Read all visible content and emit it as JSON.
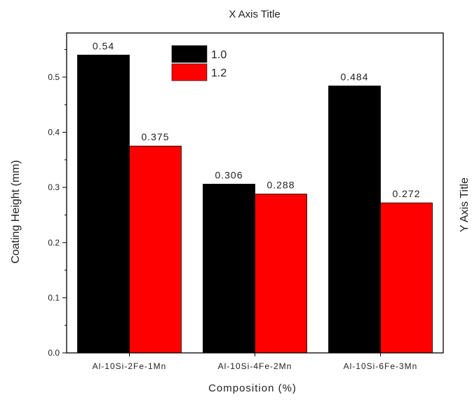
{
  "chart_data": {
    "type": "bar",
    "title": "X Axis Title",
    "xlabel": "Composition (%)",
    "ylabel": "Coating Height (mm)",
    "ylabel_right": "Y Axis Title",
    "categories": [
      "Al-10Si-2Fe-1Mn",
      "Al-10Si-4Fe-2Mn",
      "Al-10Si-6Fe-3Mn"
    ],
    "series": [
      {
        "name": "1.0",
        "color": "#000000",
        "values": [
          0.54,
          0.306,
          0.484
        ],
        "labels": [
          "0.54",
          "0.306",
          "0.484"
        ]
      },
      {
        "name": "1.2",
        "color": "#ff0000",
        "values": [
          0.375,
          0.288,
          0.272
        ],
        "labels": [
          "0.375",
          "0.288",
          "0.272"
        ]
      }
    ],
    "ylim": [
      0,
      0.58
    ],
    "yticks": [
      0.0,
      0.1,
      0.2,
      0.3,
      0.4,
      0.5
    ],
    "ytick_labels": [
      "0.0",
      "0.1",
      "0.2",
      "0.3",
      "0.4",
      "0.5"
    ],
    "grid": false,
    "legend_position": "top-center"
  }
}
